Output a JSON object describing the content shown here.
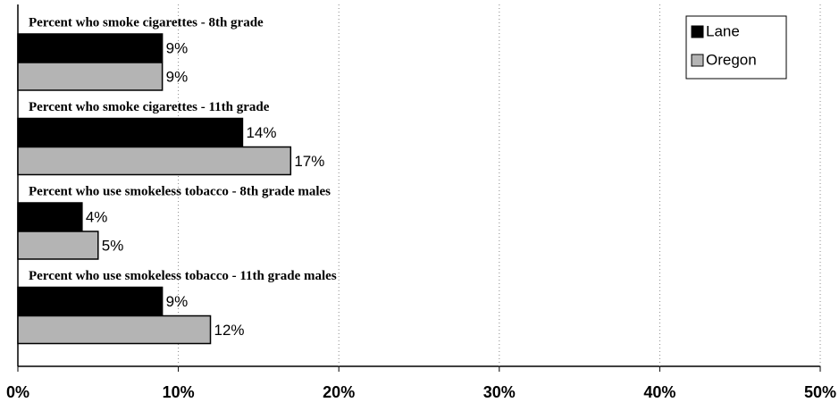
{
  "chart_data": {
    "type": "hbar",
    "categories": [
      "Percent who smoke cigarettes - 8th grade",
      "Percent who smoke cigarettes - 11th grade",
      "Percent who use smokeless tobacco - 8th grade males",
      "Percent who use smokeless tobacco - 11th grade males"
    ],
    "series": [
      {
        "name": "Lane",
        "color": "#000000",
        "values": [
          9,
          14,
          4,
          9
        ],
        "value_labels": [
          "9%",
          "14%",
          "4%",
          "9%"
        ]
      },
      {
        "name": "Oregon",
        "color": "#b4b4b4",
        "values": [
          9,
          17,
          5,
          12
        ],
        "value_labels": [
          "9%",
          "17%",
          "5%",
          "12%"
        ]
      }
    ],
    "xlim": [
      0,
      50
    ],
    "xticks": [
      {
        "value": 0,
        "label": "0%"
      },
      {
        "value": 10,
        "label": "10%"
      },
      {
        "value": 20,
        "label": "20%"
      },
      {
        "value": 30,
        "label": "30%"
      },
      {
        "value": 40,
        "label": "40%"
      },
      {
        "value": 50,
        "label": "50%"
      }
    ],
    "grid": true,
    "legend": "top-right"
  }
}
